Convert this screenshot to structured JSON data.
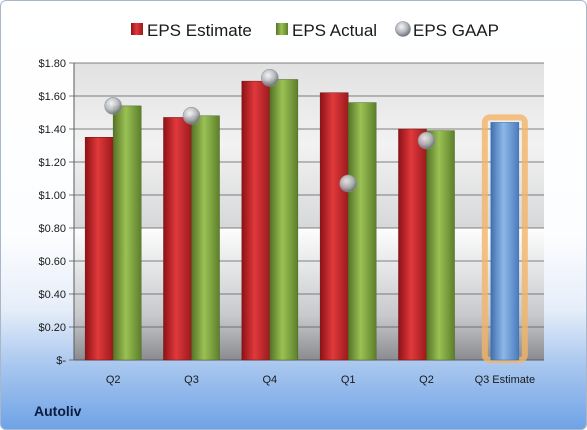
{
  "company": "Autoliv",
  "chart_data": {
    "type": "bar",
    "categories": [
      "Q2",
      "Q3",
      "Q4",
      "Q1",
      "Q2",
      "Q3 Estimate"
    ],
    "series": [
      {
        "name": "EPS Estimate",
        "color": "#c8262b",
        "values": [
          1.35,
          1.47,
          1.69,
          1.62,
          1.4,
          null
        ]
      },
      {
        "name": "EPS Actual",
        "color": "#7a9e3b",
        "values": [
          1.54,
          1.48,
          1.7,
          1.56,
          1.39,
          null
        ]
      },
      {
        "name": "EPS GAAP",
        "color": "#b9bdc4",
        "values": [
          1.54,
          1.48,
          1.71,
          1.07,
          1.33,
          null
        ]
      },
      {
        "name": "",
        "color": "#6d9bd2",
        "values": [
          null,
          null,
          null,
          null,
          null,
          1.44
        ]
      }
    ],
    "yticks": [
      "$-",
      "$0.20",
      "$0.40",
      "$0.60",
      "$0.80",
      "$1.00",
      "$1.20",
      "$1.40",
      "$1.60",
      "$1.80"
    ],
    "ylim": [
      0,
      1.8
    ],
    "grid": true,
    "legend_position": "top"
  }
}
